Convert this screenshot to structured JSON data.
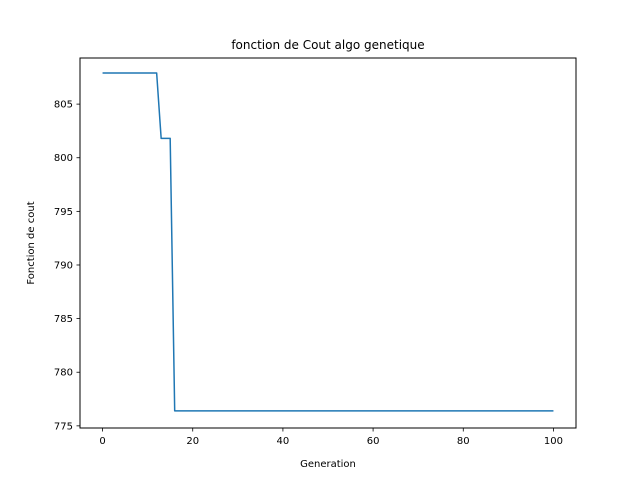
{
  "chart_data": {
    "type": "line",
    "title": "fonction de Cout algo genetique",
    "xlabel": "Generation",
    "ylabel": "Fonction de cout",
    "xlim": [
      -5,
      105
    ],
    "ylim": [
      774.8,
      809.3
    ],
    "xticks": [
      0,
      20,
      40,
      60,
      80,
      100
    ],
    "yticks": [
      775,
      780,
      785,
      790,
      795,
      800,
      805
    ],
    "grid": false,
    "legend": "none",
    "series": [
      {
        "color": "#1f77b4",
        "x": [
          0,
          12,
          13,
          15,
          16,
          100
        ],
        "y": [
          807.9,
          807.9,
          801.8,
          801.8,
          776.4,
          776.4
        ]
      }
    ]
  }
}
